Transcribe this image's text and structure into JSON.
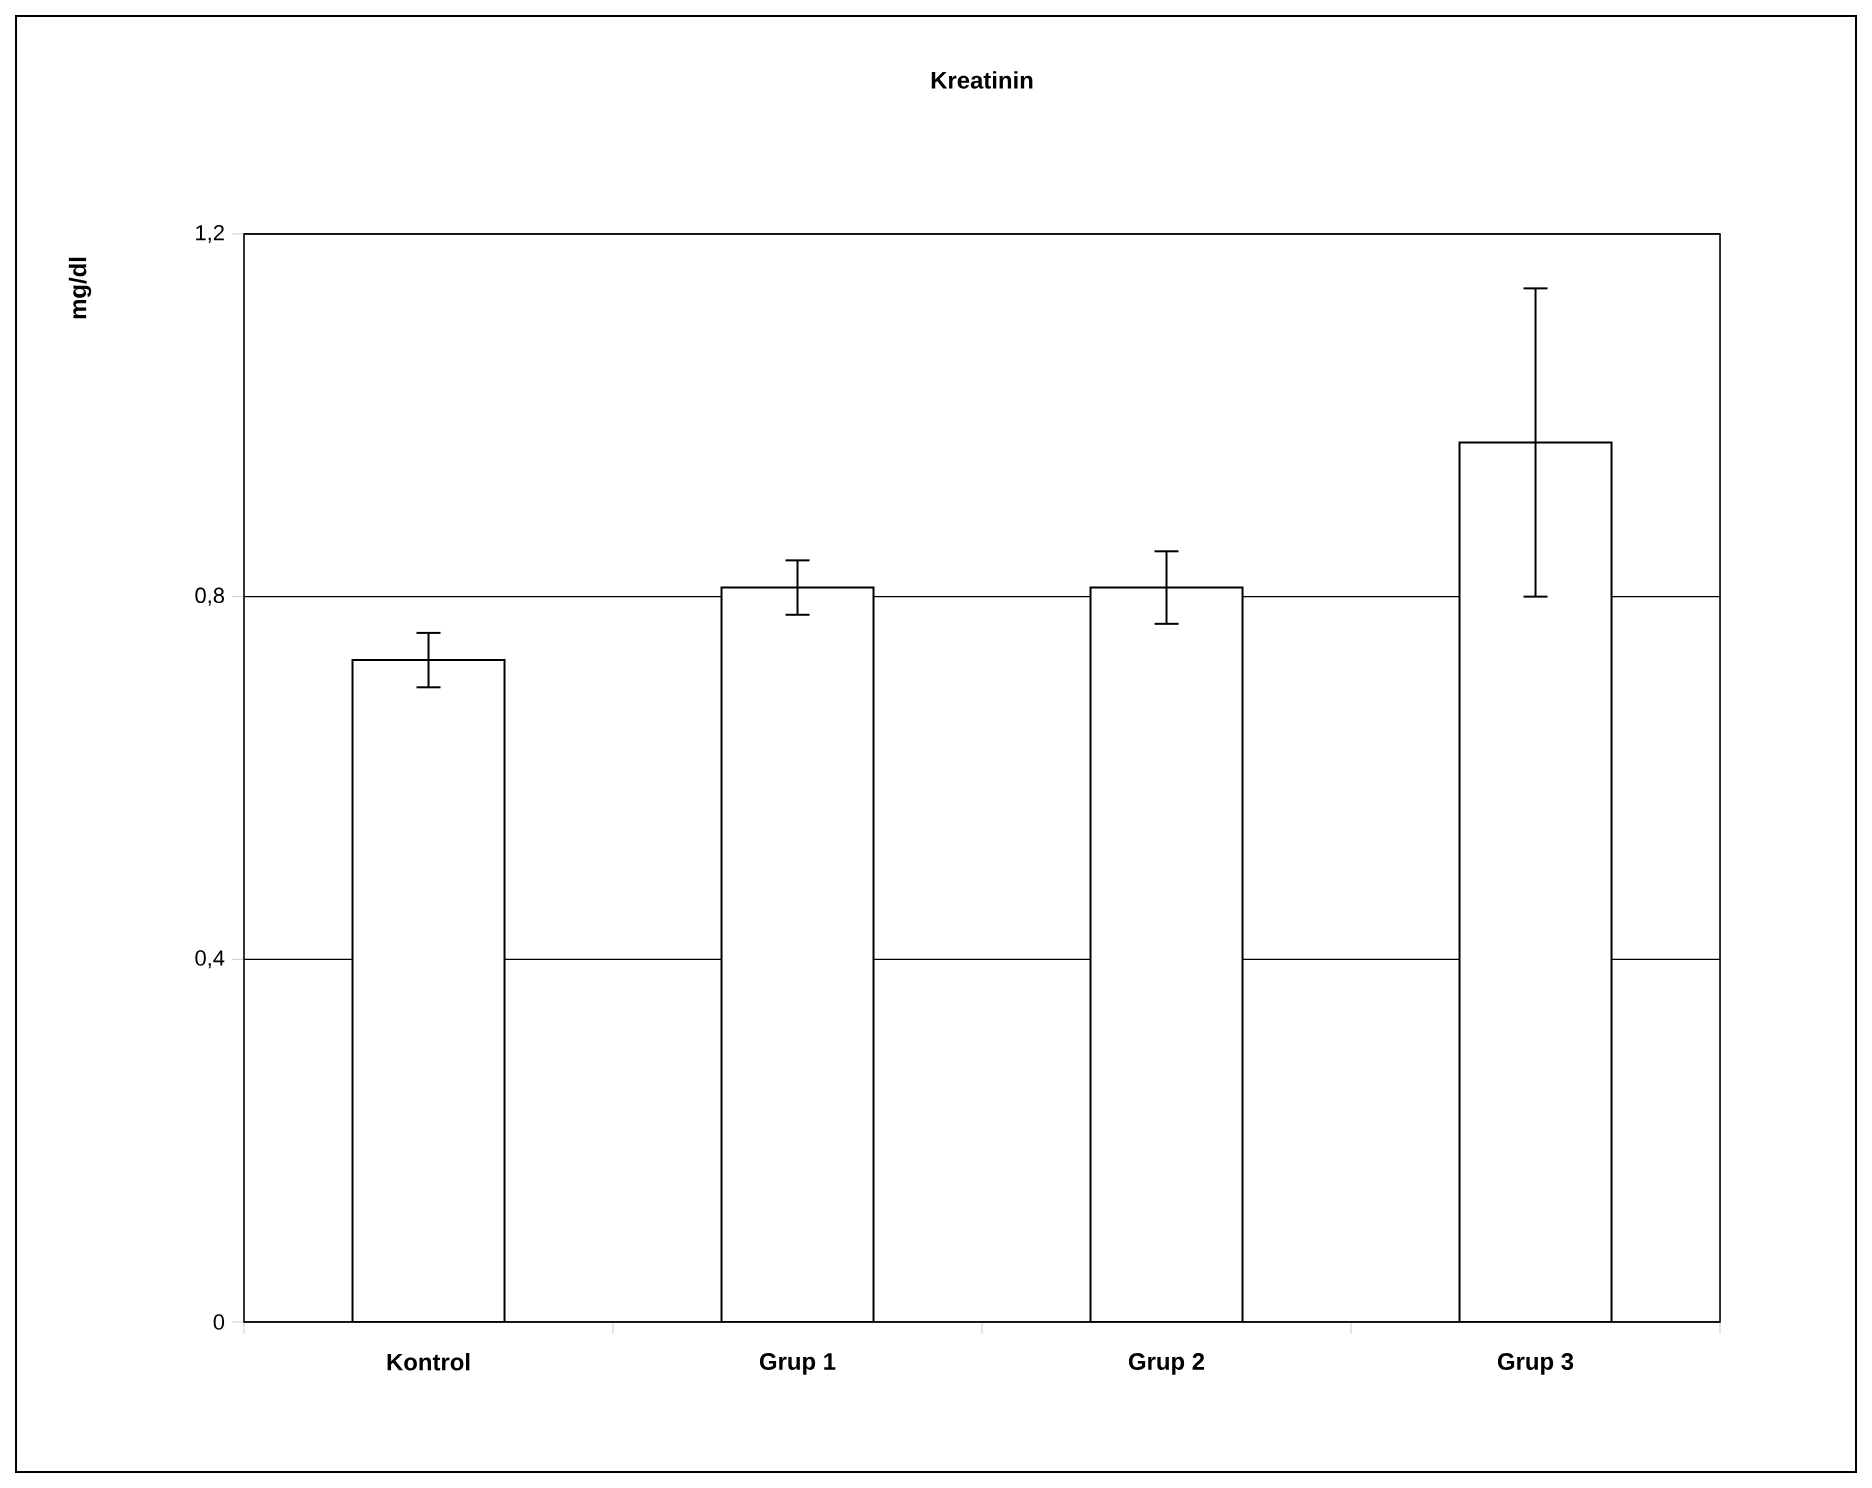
{
  "chart_data": {
    "type": "bar",
    "title": "Kreatinin",
    "ylabel": "mg/dl",
    "categories": [
      "Kontrol",
      "Grup 1",
      "Grup 2",
      "Grup 3"
    ],
    "values": [
      0.73,
      0.81,
      0.81,
      0.97
    ],
    "errors": [
      0.03,
      0.03,
      0.04,
      0.17
    ],
    "color": "#ffffff",
    "ylim": [
      0,
      1.2
    ],
    "yticks": [
      0,
      {
        "value": 0.4,
        "label": "0,4"
      },
      {
        "value": 0.8,
        "label": "0,8"
      },
      {
        "value": 1.2,
        "label": "1,2"
      }
    ],
    "grid": "y"
  }
}
